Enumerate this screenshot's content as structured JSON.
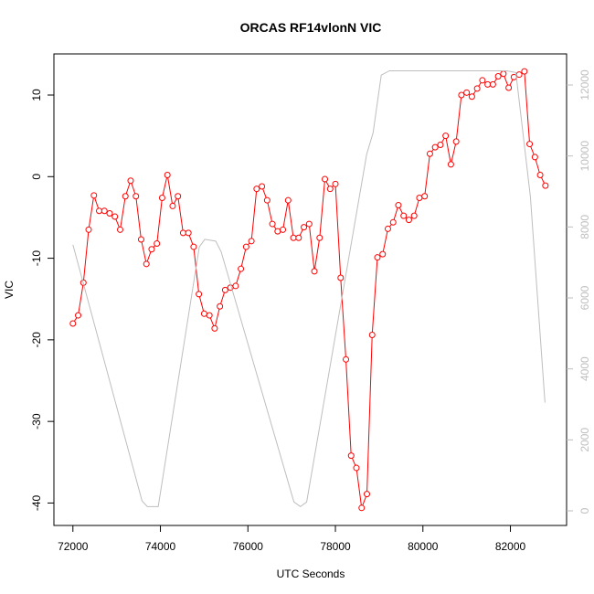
{
  "chart_data": {
    "type": "line",
    "title": "ORCAS RF14vlonN VIC",
    "x_label": "UTC Seconds",
    "y_label": "VIC",
    "xlim": [
      71566,
      83284
    ],
    "xticks": [
      72000,
      74000,
      76000,
      78000,
      80000,
      82000
    ],
    "ylim": [
      -42.75,
      15.04
    ],
    "yticks": [
      -40,
      -30,
      -20,
      -10,
      0,
      10
    ],
    "y2lim": [
      -412,
      12876
    ],
    "y2ticks": [
      0,
      2000,
      4000,
      6000,
      8000,
      10000,
      12000
    ],
    "series": [
      {
        "color": "#ff0000",
        "marker": "circle",
        "x": [
          72000,
          72120,
          72240,
          72360,
          72480,
          72600,
          72720,
          72840,
          72960,
          73080,
          73200,
          73320,
          73440,
          73560,
          73680,
          73800,
          73920,
          74040,
          74160,
          74280,
          74400,
          74520,
          74640,
          74760,
          74880,
          75000,
          75120,
          75240,
          75360,
          75480,
          75600,
          75720,
          75840,
          75960,
          76080,
          76200,
          76320,
          76440,
          76560,
          76680,
          76800,
          76920,
          77040,
          77160,
          77280,
          77400,
          77520,
          77640,
          77760,
          77880,
          78000,
          78120,
          78240,
          78360,
          78480,
          78600,
          78720,
          78840,
          78960,
          79080,
          79200,
          79320,
          79440,
          79560,
          79680,
          79800,
          79920,
          80040,
          80160,
          80280,
          80400,
          80520,
          80640,
          80760,
          80880,
          81000,
          81120,
          81240,
          81360,
          81480,
          81600,
          81720,
          81840,
          81960,
          82080,
          82200,
          82320,
          82440,
          82560,
          82680,
          82800
        ],
        "values": [
          -18,
          -17,
          -13,
          -6.5,
          -2.3,
          -4.2,
          -4.2,
          -4.5,
          -4.9,
          -6.5,
          -2.4,
          -0.5,
          -2.4,
          -7.7,
          -10.7,
          -8.9,
          -8.2,
          -2.6,
          0.2,
          -3.6,
          -2.4,
          -6.9,
          -6.9,
          -8.6,
          -14.4,
          -16.8,
          -17,
          -18.6,
          -15.9,
          -13.9,
          -13.6,
          -13.4,
          -11.3,
          -8.6,
          -7.9,
          -1.5,
          -1.2,
          -2.9,
          -5.8,
          -6.7,
          -6.5,
          -2.9,
          -7.5,
          -7.5,
          -6.2,
          -5.8,
          -11.6,
          -7.5,
          -0.3,
          -1.5,
          -0.9,
          -12.4,
          -22.4,
          -34.2,
          -35.7,
          -40.6,
          -38.9,
          -19.4,
          -9.9,
          -9.5,
          -6.4,
          -5.6,
          -3.5,
          -4.8,
          -5.3,
          -4.8,
          -2.6,
          -2.4,
          2.8,
          3.6,
          3.9,
          5,
          1.5,
          4.3,
          10,
          10.3,
          9.8,
          10.8,
          11.8,
          11.3,
          11.3,
          12.3,
          12.6,
          10.9,
          12.2,
          12.5,
          12.9,
          4,
          2.4,
          0.2,
          -1.1
        ]
      },
      {
        "color": "#bebebe",
        "axis": "y2",
        "x": [
          72000,
          73580,
          73700,
          73950,
          74890,
          75015,
          75264,
          75389,
          77052,
          77200,
          77343,
          78715,
          78861,
          79048,
          79235,
          81917,
          82125,
          82457,
          82790
        ],
        "values": [
          7500,
          280,
          120,
          120,
          7440,
          7650,
          7600,
          7300,
          250,
          120,
          250,
          10050,
          10650,
          12280,
          12400,
          12400,
          12350,
          8850,
          3050
        ]
      }
    ]
  }
}
